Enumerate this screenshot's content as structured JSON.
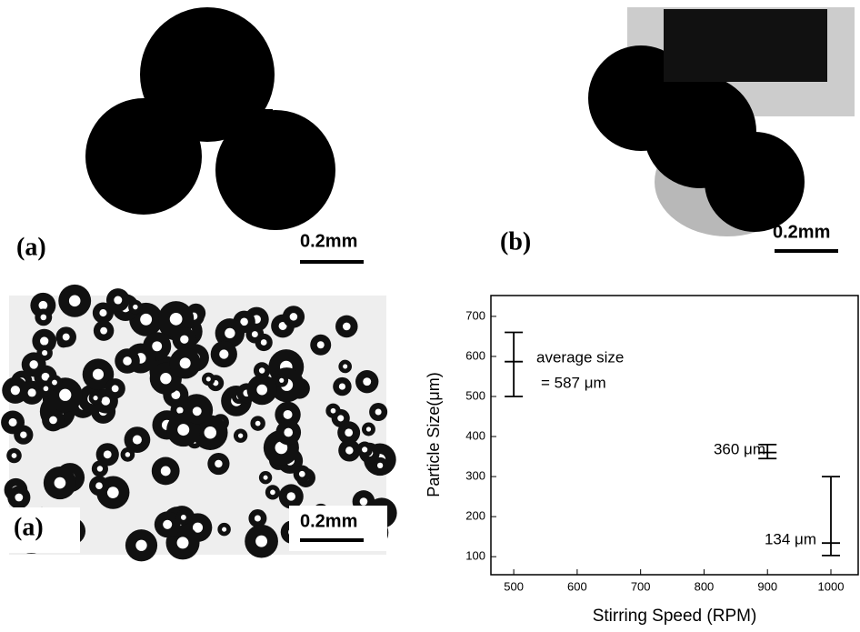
{
  "panels": [
    {
      "label": "(a)",
      "scale": "0.2mm"
    },
    {
      "label": "(b)",
      "scale": "0.2mm"
    },
    {
      "label": "(a)",
      "scale": "0.2mm"
    }
  ],
  "chart_data": {
    "type": "errorbar",
    "x_label": "Stirring Speed (RPM)",
    "y_label": "Particle Size(μm)",
    "annotation": "average size",
    "x": [
      500,
      900,
      1000
    ],
    "values": [
      587,
      360,
      134
    ],
    "lower": [
      500,
      345,
      103
    ],
    "upper": [
      660,
      380,
      300
    ],
    "value_labels": [
      "= 587 μm",
      "360 μm",
      "134 μm"
    ],
    "color": "#000000",
    "xlim": [
      464,
      1043
    ],
    "xticks": [
      500,
      600,
      700,
      800,
      900,
      1000
    ],
    "ylim": [
      55,
      752
    ],
    "yticks": [
      100,
      200,
      300,
      400,
      500,
      600,
      700
    ]
  }
}
